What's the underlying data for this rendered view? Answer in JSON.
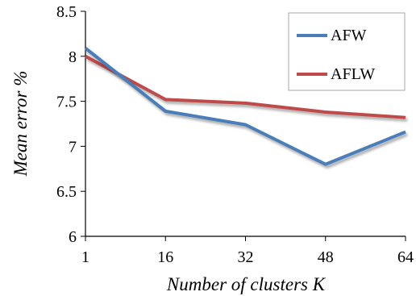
{
  "chart_data": {
    "type": "line",
    "x": [
      1,
      16,
      32,
      48,
      64
    ],
    "xticks": [
      "1",
      "16",
      "32",
      "48",
      "64"
    ],
    "yticks": [
      "6",
      "6.5",
      "7",
      "7.5",
      "8",
      "8.5"
    ],
    "ylim": [
      6,
      8.5
    ],
    "xlabel": "Number of clusters K",
    "ylabel": "Mean error %",
    "legend_position": "top-right",
    "grid": false,
    "series": [
      {
        "name": "AFW",
        "color": "#4a7ebb",
        "values": [
          8.09,
          7.39,
          7.24,
          6.8,
          7.16
        ]
      },
      {
        "name": "AFLW",
        "color": "#be4b48",
        "values": [
          8.0,
          7.52,
          7.48,
          7.38,
          7.32
        ]
      }
    ]
  }
}
